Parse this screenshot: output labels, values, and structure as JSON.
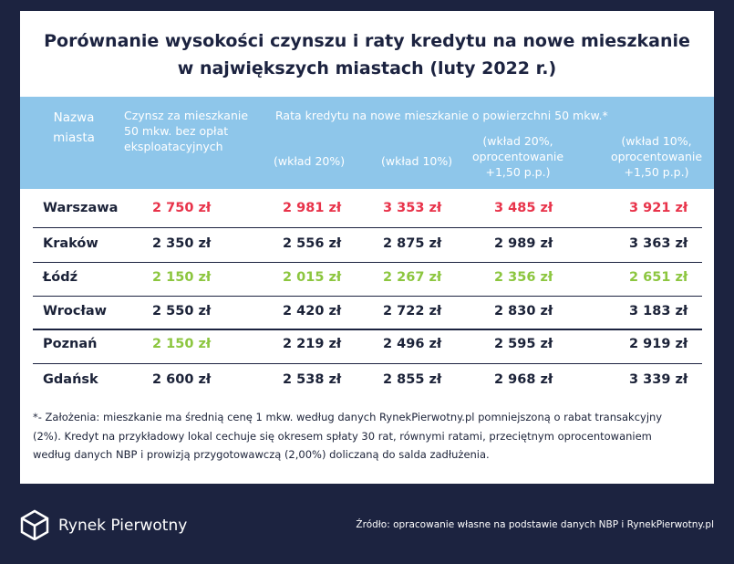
{
  "title": [
    "Porównanie wysokości czynszu i raty kredytu na nowe mieszkanie",
    "w największych miastach (luty 2022 r.)"
  ],
  "table": {
    "header": {
      "city": "Nazwa miasta",
      "rent": "Czynsz za mieszkanie 50 mkw. bez opłat eksploatacyjnych",
      "loan": "Rata kredytu na nowe mieszkanie o powierzchni 50 mkw.*",
      "loan_columns": [
        "(wkład 20%)",
        "(wkład 10%)",
        "(wkład 20%, oprocentowanie +1,50 p.p.)",
        "(wkład 10%, oprocentowanie +1,50 p.p.)"
      ]
    },
    "rows": [
      {
        "city": "Warszawa",
        "values": [
          "2 750 zł",
          "2 981 zł",
          "3 353 zł",
          "3 485 zł",
          "3 921 zł"
        ],
        "colors": [
          "#e8334a",
          "#e8334a",
          "#e8334a",
          "#e8334a",
          "#e8334a"
        ]
      },
      {
        "city": "Kraków",
        "values": [
          "2 350 zł",
          "2 556 zł",
          "2 875 zł",
          "2 989 zł",
          "3 363 zł"
        ],
        "colors": [
          "#1b2238",
          "#1b2238",
          "#1b2238",
          "#1b2238",
          "#1b2238"
        ]
      },
      {
        "city": "Łódź",
        "values": [
          "2 150 zł",
          "2 015 zł",
          "2 267 zł",
          "2 356 zł",
          "2 651 zł"
        ],
        "colors": [
          "#8cc63f",
          "#8cc63f",
          "#8cc63f",
          "#8cc63f",
          "#8cc63f"
        ]
      },
      {
        "city": "Wrocław",
        "values": [
          "2 550 zł",
          "2 420 zł",
          "2 722 zł",
          "2 830 zł",
          "3 183 zł"
        ],
        "colors": [
          "#1b2238",
          "#1b2238",
          "#1b2238",
          "#1b2238",
          "#1b2238"
        ]
      },
      {
        "city": "Poznań",
        "values": [
          "2 150 zł",
          "2 219 zł",
          "2 496 zł",
          "2 595 zł",
          "2 919 zł"
        ],
        "colors": [
          "#8cc63f",
          "#1b2238",
          "#1b2238",
          "#1b2238",
          "#1b2238"
        ]
      },
      {
        "city": "Gdańsk",
        "values": [
          "2 600 zł",
          "2 538 zł",
          "2 855 zł",
          "2 968 zł",
          "3 339 zł"
        ],
        "colors": [
          "#1b2238",
          "#1b2238",
          "#1b2238",
          "#1b2238",
          "#1b2238"
        ]
      }
    ]
  },
  "footnote": [
    "*- Założenia: mieszkanie ma średnią cenę 1 mkw. według danych RynekPierwotny.pl pomniejszoną o rabat transakcyjny",
    "(2%). Kredyt na przykładowy lokal cechuje się okresem spłaty 30 rat, równymi ratami, przeciętnym oprocentowaniem",
    "według danych NBP i prowizją przygotowawczą (2,00%) doliczaną do salda zadłużenia."
  ],
  "footer": {
    "brand": "Rynek Pierwotny",
    "source": "Źródło: opracowanie własne na podstawie danych  NBP i RynekPierwotny.pl"
  }
}
